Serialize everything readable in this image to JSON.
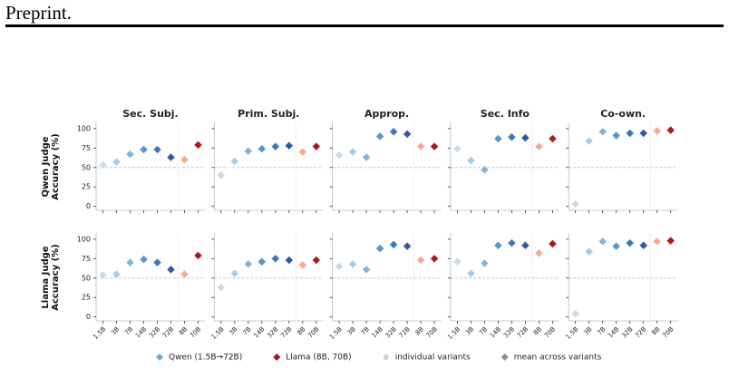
{
  "header": "Preprint.",
  "palette": [
    "#c6dbef",
    "#a6cbe6",
    "#7fb5dc",
    "#5596cc",
    "#3a78bb",
    "#2b5c9e",
    "#1c3a6e",
    "#f7a98f",
    "#a8191f"
  ],
  "legend": [
    {
      "label": "Qwen (1.5B→72B)",
      "color": "#6aaad9",
      "shape": "diamond"
    },
    {
      "label": "Llama (8B, 70B)",
      "color": "#a8191f",
      "shape": "diamond"
    },
    {
      "label": "individual variants",
      "color": "#cfcfcf",
      "shape": "circle"
    },
    {
      "label": "mean across variants",
      "color": "#8f8f8f",
      "shape": "diamond"
    }
  ],
  "chart_data": [
    {
      "type": "dot",
      "title": "Sec. Subj.",
      "ylabel": "Qwen Judge Accuracy (%)",
      "values": [
        53,
        57,
        67,
        73,
        73,
        63,
        60,
        79
      ],
      "ylim": [
        -5,
        108
      ],
      "yticks": [
        0,
        25,
        50,
        75,
        100
      ],
      "reference_line": 50
    },
    {
      "type": "dot",
      "title": "Prim. Subj.",
      "values": [
        40,
        58,
        71,
        74,
        77,
        78,
        70,
        77
      ],
      "ylim": [
        -5,
        108
      ],
      "yticks": [
        0,
        25,
        50,
        75,
        100
      ],
      "reference_line": 50
    },
    {
      "type": "dot",
      "title": "Approp.",
      "values": [
        66,
        70,
        63,
        90,
        96,
        93,
        77,
        77
      ],
      "ylim": [
        -5,
        108
      ],
      "yticks": [
        0,
        25,
        50,
        75,
        100
      ],
      "reference_line": 50
    },
    {
      "type": "dot",
      "title": "Sec. Info",
      "values": [
        74,
        59,
        47,
        87,
        89,
        88,
        77,
        87
      ],
      "ylim": [
        -5,
        108
      ],
      "yticks": [
        0,
        25,
        50,
        75,
        100
      ],
      "reference_line": 50
    },
    {
      "type": "dot",
      "title": "Co-own.",
      "values": [
        3,
        84,
        96,
        91,
        94,
        94,
        97,
        98
      ],
      "ylim": [
        -5,
        108
      ],
      "yticks": [
        0,
        25,
        50,
        75,
        100
      ],
      "reference_line": 50
    },
    {
      "type": "dot",
      "ylabel": "Llama Judge Accuracy (%)",
      "categories": [
        "1.5B",
        "3B",
        "7B",
        "14B",
        "32B",
        "72B",
        "8B",
        "70B"
      ],
      "values": [
        54,
        55,
        70,
        74,
        70,
        61,
        55,
        79
      ],
      "ylim": [
        -5,
        108
      ],
      "yticks": [
        0,
        25,
        50,
        75,
        100
      ],
      "reference_line": 50
    },
    {
      "type": "dot",
      "categories": [
        "1.5B",
        "3B",
        "7B",
        "14B",
        "32B",
        "72B",
        "8B",
        "70B"
      ],
      "values": [
        38,
        56,
        68,
        71,
        75,
        73,
        67,
        73
      ],
      "ylim": [
        -5,
        108
      ],
      "yticks": [
        0,
        25,
        50,
        75,
        100
      ],
      "reference_line": 50
    },
    {
      "type": "dot",
      "categories": [
        "1.5B",
        "3B",
        "7B",
        "14B",
        "32B",
        "72B",
        "8B",
        "70B"
      ],
      "values": [
        65,
        68,
        61,
        88,
        93,
        91,
        73,
        75
      ],
      "ylim": [
        -5,
        108
      ],
      "yticks": [
        0,
        25,
        50,
        75,
        100
      ],
      "reference_line": 50
    },
    {
      "type": "dot",
      "categories": [
        "1.5B",
        "3B",
        "7B",
        "14B",
        "32B",
        "72B",
        "8B",
        "70B"
      ],
      "values": [
        71,
        56,
        69,
        92,
        95,
        92,
        82,
        94
      ],
      "ylim": [
        -5,
        108
      ],
      "yticks": [
        0,
        25,
        50,
        75,
        100
      ],
      "reference_line": 50
    },
    {
      "type": "dot",
      "categories": [
        "1.5B",
        "3B",
        "7B",
        "14B",
        "32B",
        "72B",
        "8B",
        "70B"
      ],
      "values": [
        4,
        84,
        97,
        91,
        95,
        92,
        97,
        98
      ],
      "ylim": [
        -5,
        108
      ],
      "yticks": [
        0,
        25,
        50,
        75,
        100
      ],
      "reference_line": 50
    }
  ]
}
